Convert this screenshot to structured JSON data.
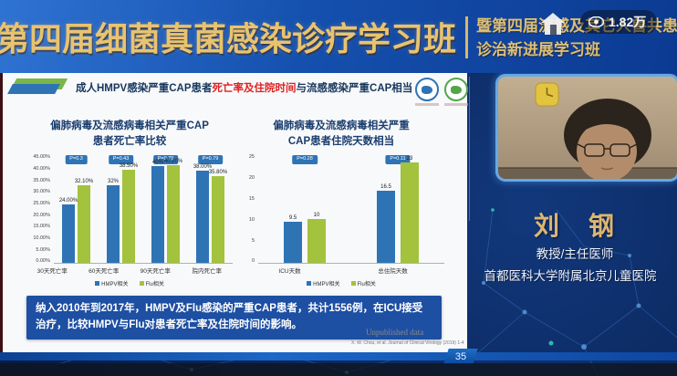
{
  "banner": {
    "main_title": "第四届细菌真菌感染诊疗学习班",
    "sub_title_line1": "暨第四届流感及其它人兽共患病",
    "sub_title_line2": "诊治新进展学习班",
    "viewer_count": "1.82万"
  },
  "icons": {
    "viewer_eye": "eye-icon",
    "overlay_home": "home-icon",
    "wall_clock": "clock-icon"
  },
  "colors": {
    "banner_gold": "#e8c370",
    "hmpv_blue": "#2e74b5",
    "flu_green": "#a3c23d",
    "summary_box_blue": "#1d4fa3"
  },
  "slide": {
    "title_prefix": "成人HMPV感染严重CAP患者",
    "title_highlight": "死亡率及住院时间",
    "title_suffix": "与流感感染严重CAP相当",
    "summary_text": "纳入2010年到2017年，HMPV及Flu感染的严重CAP患者，共计1556例，在ICU接受治疗，比较HMPV与Flu对患者死亡率及住院时间的影响。",
    "unpublished_note": "Unpublished data",
    "citation": "X. W. Chou, et al. Journal of Clinical Virology (2019) 1-4",
    "page_number": "35"
  },
  "chart_data": [
    {
      "type": "bar",
      "title_line1": "偏肺病毒及流感病毒相关严重CAP",
      "title_line2": "患者死亡率比较",
      "categories": [
        "30天死亡率",
        "60天死亡率",
        "90天死亡率",
        "院内死亡率"
      ],
      "series": [
        {
          "name": "HMPV相关",
          "color": "#2e74b5",
          "values": [
            24.0,
            32.0,
            40.0,
            38.0
          ],
          "labels": [
            "24.00%",
            "32%",
            "40%",
            "38.00%"
          ]
        },
        {
          "name": "Flu相关",
          "color": "#a3c23d",
          "values": [
            32.1,
            38.5,
            40.2,
            35.8
          ],
          "labels": [
            "32.10%",
            "38.50%",
            "40.20%",
            "35.80%"
          ]
        }
      ],
      "p_values": [
        "P=0.3",
        "P=0.43",
        "P=0.79",
        "P=0.79"
      ],
      "ylim": [
        0,
        45
      ],
      "yticks": [
        "45.00%",
        "40.00%",
        "35.00%",
        "30.00%",
        "25.00%",
        "20.00%",
        "15.00%",
        "10.00%",
        "5.00%",
        "0.00%"
      ],
      "grid": false,
      "legend_position": "bottom"
    },
    {
      "type": "bar",
      "title_line1": "偏肺病毒及流感病毒相关严重",
      "title_line2": "CAP患者住院天数相当",
      "categories": [
        "ICU天数",
        "总住院天数"
      ],
      "series": [
        {
          "name": "HMPV相关",
          "color": "#2e74b5",
          "values": [
            9.5,
            16.5
          ],
          "labels": [
            "9.5",
            "16.5"
          ]
        },
        {
          "name": "Flu相关",
          "color": "#a3c23d",
          "values": [
            10,
            23
          ],
          "labels": [
            "10",
            "23"
          ]
        }
      ],
      "p_values": [
        "P=0.28",
        "P=0.11"
      ],
      "ylim": [
        0,
        25
      ],
      "yticks": [
        "25",
        "20",
        "15",
        "10",
        "5",
        "0"
      ],
      "grid": false,
      "legend_position": "bottom"
    }
  ],
  "speaker": {
    "name": "刘　钢",
    "title": "教授/主任医师",
    "affiliation": "首都医科大学附属北京儿童医院"
  }
}
